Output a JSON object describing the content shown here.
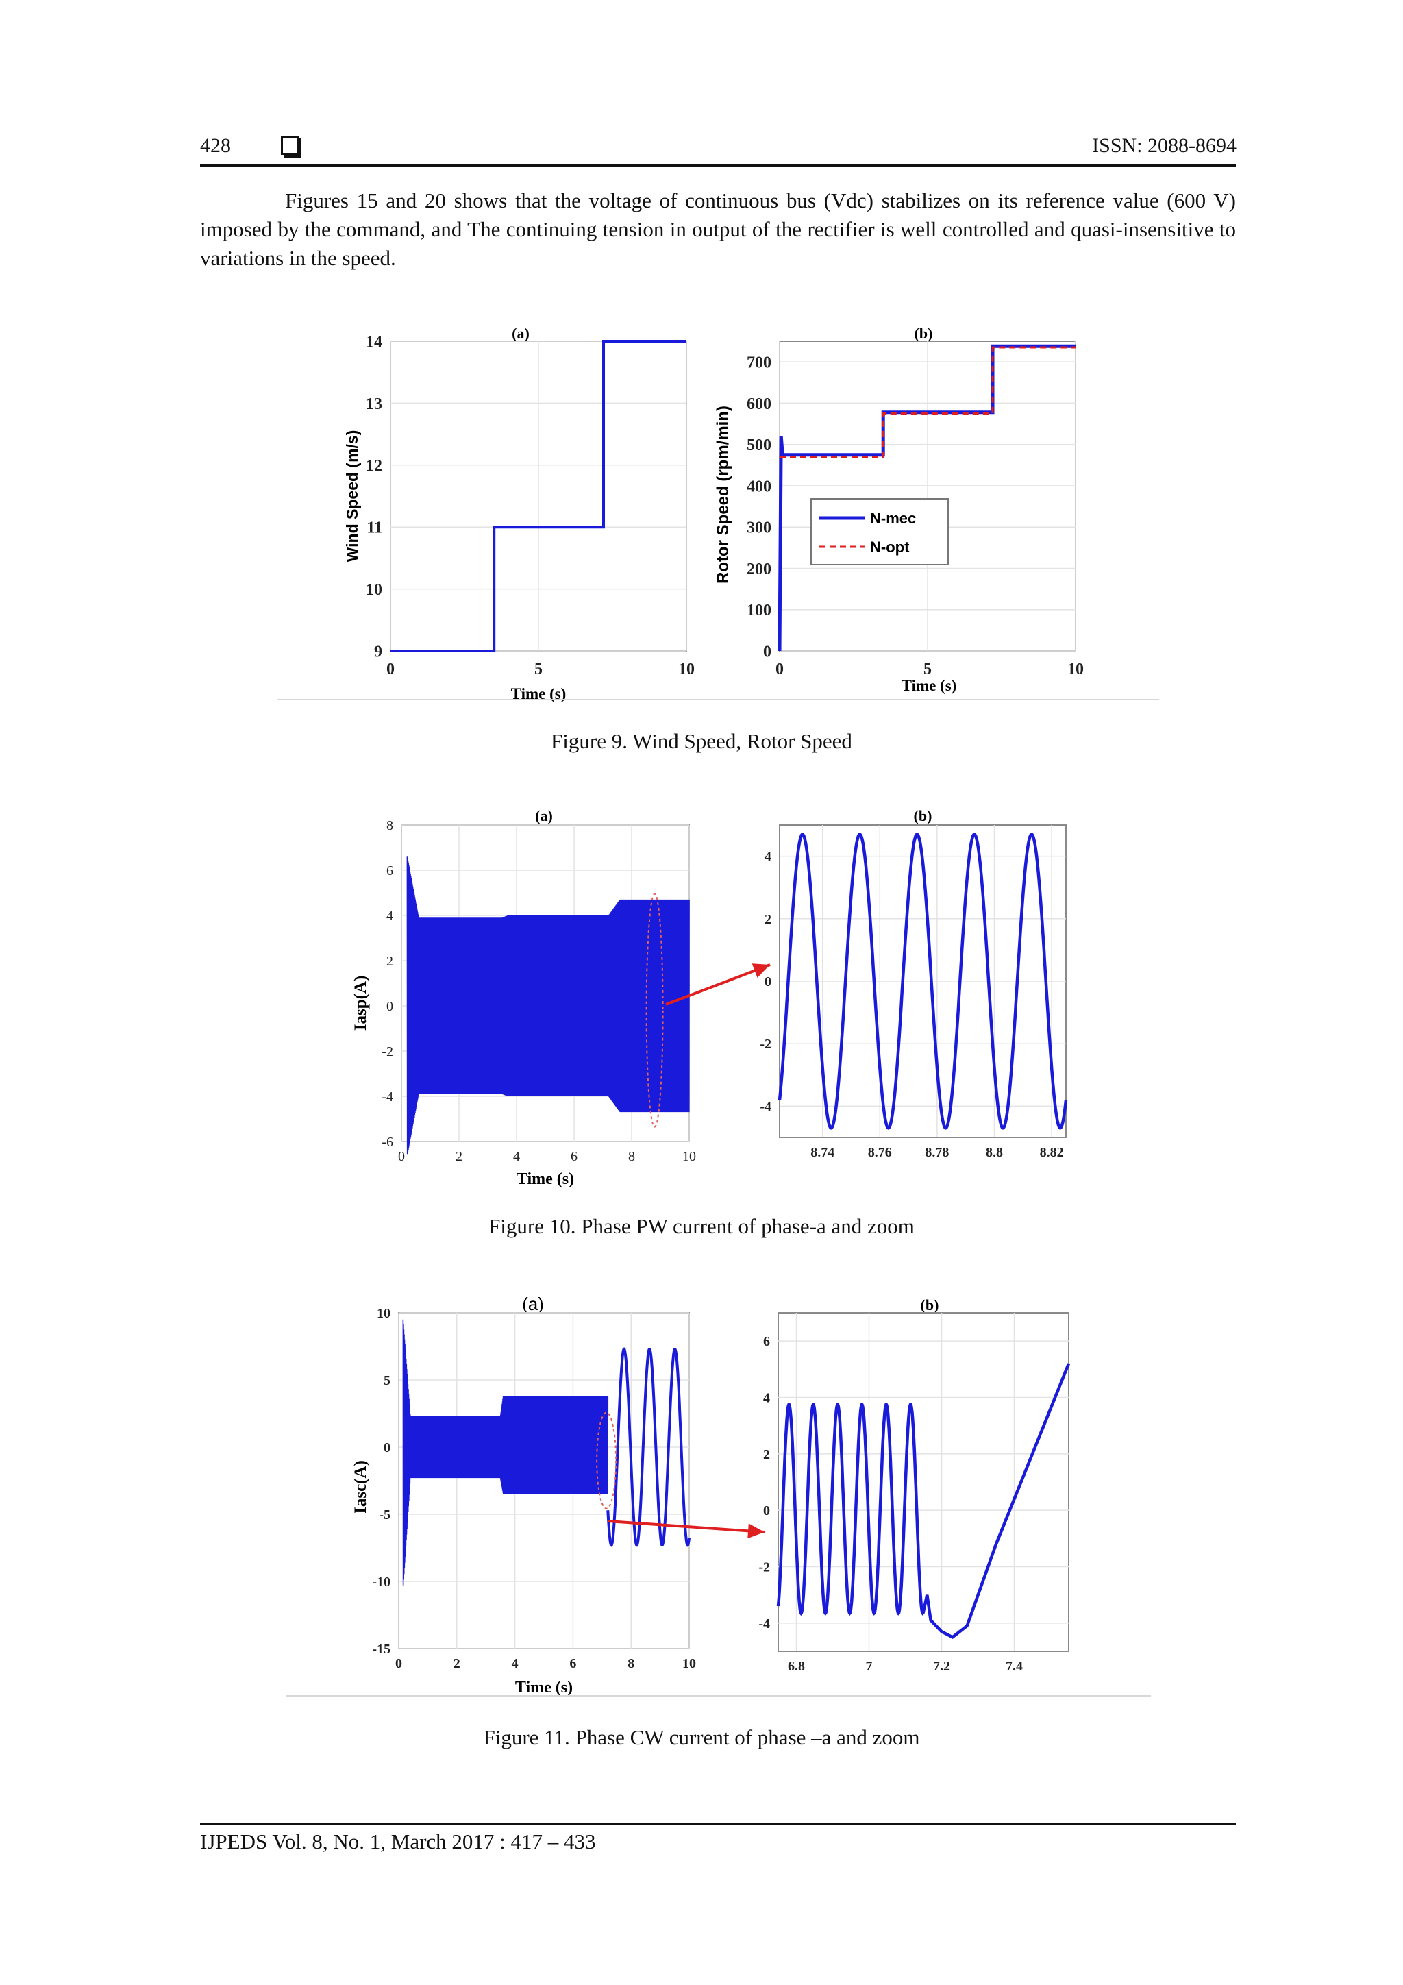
{
  "header": {
    "page_number": "428",
    "issn": "ISSN: 2088-8694"
  },
  "body_paragraph": "Figures 15 and 20 shows that the voltage of continuous bus (Vdc) stabilizes on its reference value (600 V) imposed by the command, and  The continuing tension in output of the rectifier is well controlled and quasi-insensitive to variations in the speed.",
  "captions": {
    "fig9": "Figure 9. Wind Speed, Rotor Speed",
    "fig10": "Figure 10. Phase PW current of phase-a and zoom",
    "fig11": "Figure 11. Phase CW current of phase –a and zoom"
  },
  "footer": "IJPEDS  Vol. 8, No. 1, March 2017 :  417 – 433",
  "colors": {
    "trace": "#1a1adb",
    "dashed_reference": "#e01e1e",
    "arrow": "#e02020"
  },
  "chart_data": [
    {
      "id": "fig9a",
      "type": "line",
      "title": "(a)",
      "xlabel": "Time (s)",
      "ylabel": "Wind Speed (m/s)",
      "xlim": [
        0,
        10
      ],
      "ylim": [
        9,
        14
      ],
      "xticks": [
        "0",
        "5",
        "10"
      ],
      "yticks": [
        "9",
        "10",
        "11",
        "12",
        "13",
        "14"
      ],
      "grid": true,
      "series": [
        {
          "x": [
            0,
            3.5,
            3.5,
            7.2,
            7.2,
            10
          ],
          "y": [
            9,
            9,
            11,
            11,
            14,
            14
          ]
        }
      ]
    },
    {
      "id": "fig9b",
      "type": "line",
      "title": "(b)",
      "xlabel": "Time (s)",
      "ylabel": "Rotor Speed (rpm/min)",
      "xlim": [
        0,
        10
      ],
      "ylim": [
        0,
        750
      ],
      "xticks": [
        "0",
        "5",
        "10"
      ],
      "yticks": [
        "0",
        "100",
        "200",
        "300",
        "400",
        "500",
        "600",
        "700"
      ],
      "grid": true,
      "legend_position": "center-left",
      "series": [
        {
          "name": "N-mec",
          "style": "solid",
          "x": [
            0,
            0.05,
            0.1,
            3.5,
            3.5,
            7.2,
            7.2,
            10
          ],
          "y": [
            0,
            520,
            475,
            475,
            578,
            578,
            738,
            738
          ]
        },
        {
          "name": "N-opt",
          "style": "dashed",
          "x": [
            0,
            3.5,
            3.5,
            7.2,
            7.2,
            10
          ],
          "y": [
            470,
            470,
            575,
            575,
            735,
            735
          ]
        }
      ]
    },
    {
      "id": "fig10a",
      "type": "line",
      "title": "(a)",
      "xlabel": "Time (s)",
      "ylabel": "Iasp(A)",
      "xlim": [
        0,
        10
      ],
      "ylim": [
        -6,
        8
      ],
      "xticks": [
        "0",
        "2",
        "4",
        "6",
        "8",
        "10"
      ],
      "yticks": [
        "-6",
        "-4",
        "-2",
        "0",
        "2",
        "4",
        "6",
        "8"
      ],
      "grid": true,
      "envelope": {
        "t": [
          0.2,
          0.6,
          3.5,
          3.7,
          7.2,
          7.6,
          10
        ],
        "amplitude": [
          6.6,
          3.9,
          3.9,
          4.0,
          4.0,
          4.7,
          4.7
        ]
      }
    },
    {
      "id": "fig10b",
      "type": "line",
      "title": "(b)",
      "xlim": [
        8.725,
        8.825
      ],
      "ylim": [
        -5,
        5
      ],
      "xticks": [
        "8.74",
        "8.76",
        "8.78",
        "8.8",
        "8.82"
      ],
      "yticks": [
        "-4",
        "-2",
        "0",
        "2",
        "4"
      ],
      "grid": true,
      "series": [
        {
          "description_values": {
            "amplitude": 4.7,
            "period_s": 0.02,
            "peaks_at": [
              8.733,
              8.753,
              8.773,
              8.793,
              8.813
            ]
          }
        }
      ]
    },
    {
      "id": "fig11a",
      "type": "line",
      "title": "(a)",
      "xlabel": "Time (s)",
      "ylabel": "Iasc(A)",
      "xlim": [
        0,
        10
      ],
      "ylim": [
        -15,
        10
      ],
      "xticks": [
        "0",
        "2",
        "4",
        "6",
        "8",
        "10"
      ],
      "yticks": [
        "-15",
        "-10",
        "-5",
        "0",
        "5",
        "10"
      ],
      "grid": true,
      "envelope": {
        "t": [
          0.15,
          0.4,
          3.5,
          3.6,
          7.2
        ],
        "upper": [
          9.5,
          2.3,
          2.3,
          3.8,
          3.8
        ],
        "lower": [
          -10.5,
          -2.3,
          -2.3,
          -3.5,
          -3.5
        ]
      },
      "tail": {
        "t_start": 7.2,
        "t_end": 10,
        "amplitude": 7.3,
        "cycles": 3.2
      }
    },
    {
      "id": "fig11b",
      "type": "line",
      "title": "(b)",
      "xlim": [
        6.75,
        7.55
      ],
      "ylim": [
        -5,
        7
      ],
      "xticks": [
        "6.8",
        "7",
        "7.2",
        "7.4"
      ],
      "yticks": [
        "-4",
        "-2",
        "0",
        "2",
        "4",
        "6"
      ],
      "grid": true,
      "series": [
        {
          "description_values": {
            "amplitude": 3.7,
            "period_s": 0.067,
            "end_of_oscillation_s": 7.15,
            "min_after": -4.5,
            "end_value": 5.2
          }
        }
      ]
    }
  ]
}
